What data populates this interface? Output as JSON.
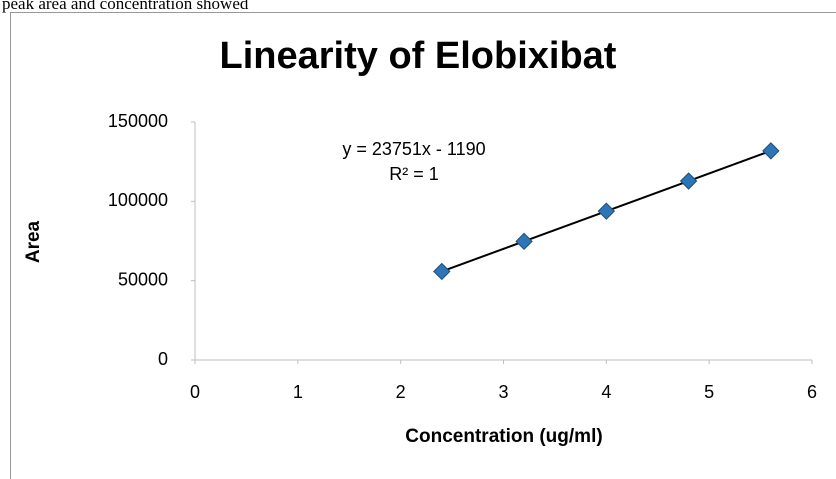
{
  "text_above": "peak area and concentration showed",
  "chart_data": {
    "type": "scatter",
    "title": "Linearity of Elobixibat",
    "xlabel": "Concentration (ug/ml)",
    "ylabel": "Area",
    "series": [
      {
        "name": "Area",
        "color": "#2e75b6",
        "x": [
          2.4,
          3.2,
          4.0,
          4.8,
          5.6
        ],
        "values": [
          55800,
          74800,
          93800,
          112800,
          131800
        ]
      }
    ],
    "trendline": {
      "slope": 23751,
      "intercept": -1190,
      "equation": "y = 23751x - 1190",
      "r2_label": "R² = 1"
    },
    "xlim": [
      0,
      6
    ],
    "xticks": [
      0,
      1,
      2,
      3,
      4,
      5,
      6
    ],
    "ylim": [
      0,
      150000
    ],
    "yticks": [
      0,
      50000,
      100000,
      150000
    ],
    "grid": false
  }
}
